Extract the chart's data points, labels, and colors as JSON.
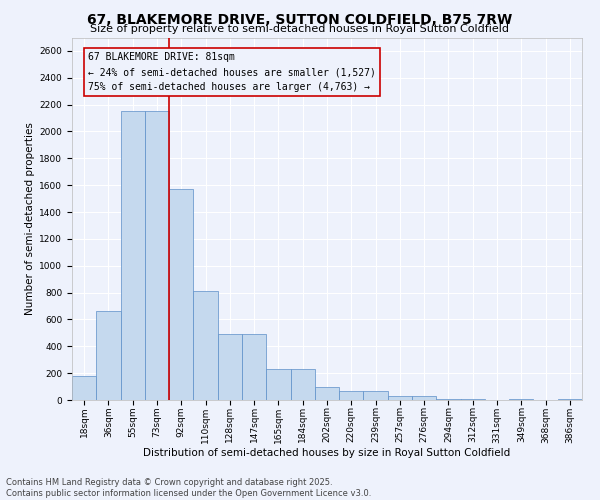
{
  "title": "67, BLAKEMORE DRIVE, SUTTON COLDFIELD, B75 7RW",
  "subtitle": "Size of property relative to semi-detached houses in Royal Sutton Coldfield",
  "xlabel": "Distribution of semi-detached houses by size in Royal Sutton Coldfield",
  "ylabel": "Number of semi-detached properties",
  "categories": [
    "18sqm",
    "36sqm",
    "55sqm",
    "73sqm",
    "92sqm",
    "110sqm",
    "128sqm",
    "147sqm",
    "165sqm",
    "184sqm",
    "202sqm",
    "220sqm",
    "239sqm",
    "257sqm",
    "276sqm",
    "294sqm",
    "312sqm",
    "331sqm",
    "349sqm",
    "368sqm",
    "386sqm"
  ],
  "values": [
    180,
    660,
    2150,
    2150,
    1570,
    810,
    490,
    490,
    230,
    230,
    100,
    70,
    70,
    30,
    30,
    10,
    10,
    0,
    5,
    0,
    10
  ],
  "bar_color": "#c5d9ee",
  "bar_edge_color": "#5b8ec8",
  "background_color": "#eef2fc",
  "grid_color": "#ffffff",
  "property_bar_index": 3,
  "property_size": "81sqm",
  "property_name": "67 BLAKEMORE DRIVE",
  "pct_smaller": 24,
  "count_smaller": 1527,
  "pct_larger": 75,
  "count_larger": 4763,
  "red_color": "#cc0000",
  "ylim_max": 2700,
  "yticks": [
    0,
    200,
    400,
    600,
    800,
    1000,
    1200,
    1400,
    1600,
    1800,
    2000,
    2200,
    2400,
    2600
  ],
  "footer_line1": "Contains HM Land Registry data © Crown copyright and database right 2025.",
  "footer_line2": "Contains public sector information licensed under the Open Government Licence v3.0.",
  "title_fontsize": 10,
  "subtitle_fontsize": 8,
  "ann_fontsize": 7,
  "tick_fontsize": 6.5,
  "ylabel_fontsize": 7.5,
  "xlabel_fontsize": 7.5,
  "footer_fontsize": 6
}
